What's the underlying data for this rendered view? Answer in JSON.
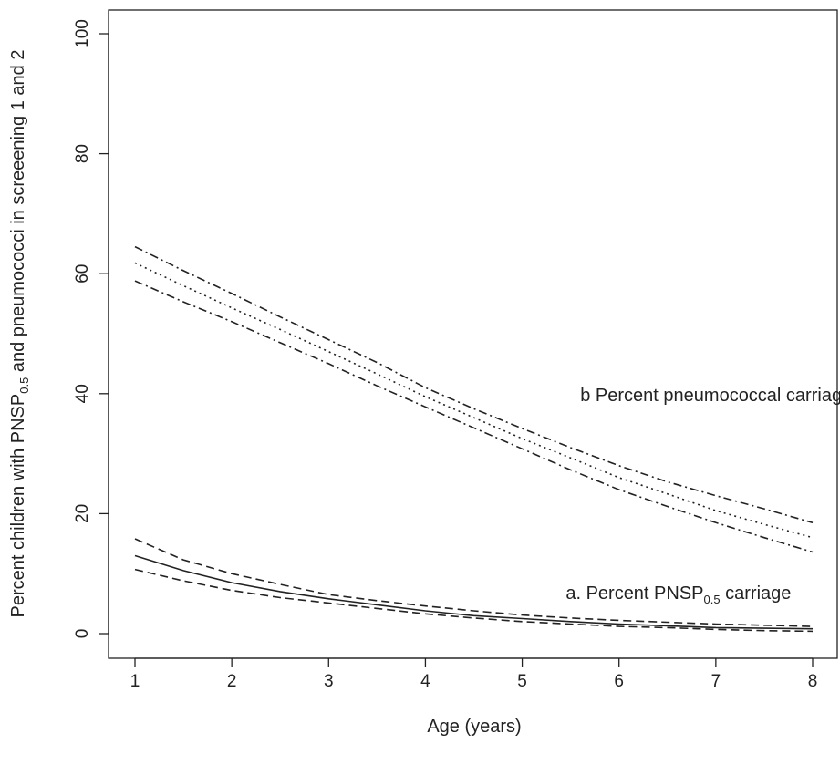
{
  "chart_data": {
    "type": "line",
    "xlabel": "Age (years)",
    "ylabel": {
      "before": "Percent children with PNSP",
      "subscript": "0.5",
      "after": " and pneumococci in screeening 1 and 2"
    },
    "xlim": [
      1,
      8
    ],
    "ylim": [
      0,
      100
    ],
    "x_ticks": [
      1,
      2,
      3,
      4,
      5,
      6,
      7,
      8
    ],
    "y_ticks": [
      0,
      20,
      40,
      60,
      80,
      100
    ],
    "grid": false,
    "legend": "none",
    "x": [
      1,
      1.5,
      2,
      2.5,
      3,
      3.5,
      4,
      4.5,
      5,
      5.5,
      6,
      6.5,
      7,
      7.5,
      8
    ],
    "series": [
      {
        "group": "b",
        "style": "dotted",
        "color": "#222222",
        "values": [
          61.8,
          58,
          54.3,
          50.7,
          47,
          43.3,
          39.5,
          36,
          32.5,
          29.3,
          26,
          23.3,
          20.5,
          18.2,
          16
        ]
      },
      {
        "group": "b",
        "style": "dashdot",
        "color": "#222222",
        "values": [
          64.5,
          60.5,
          56.7,
          52.8,
          49,
          45.2,
          41,
          37.5,
          34.2,
          31,
          28,
          25.3,
          23,
          20.8,
          18.5
        ]
      },
      {
        "group": "b",
        "style": "dashdot",
        "color": "#222222",
        "values": [
          58.8,
          55.3,
          52,
          48.5,
          45,
          41.3,
          37.8,
          34.3,
          30.8,
          27.3,
          24,
          21.2,
          18.5,
          16,
          13.6
        ]
      },
      {
        "group": "a",
        "style": "solid",
        "color": "#222222",
        "values": [
          13,
          10.5,
          8.5,
          7,
          5.8,
          4.8,
          3.8,
          3,
          2.5,
          2,
          1.6,
          1.3,
          1,
          0.9,
          0.8
        ]
      },
      {
        "group": "a",
        "style": "dashed",
        "color": "#222222",
        "values": [
          15.8,
          12.3,
          10,
          8.2,
          6.5,
          5.5,
          4.6,
          3.8,
          3.1,
          2.6,
          2.2,
          1.9,
          1.6,
          1.4,
          1.2
        ]
      },
      {
        "group": "a",
        "style": "dashed",
        "color": "#222222",
        "values": [
          10.7,
          8.8,
          7.2,
          6,
          5.1,
          4.2,
          3.3,
          2.6,
          2,
          1.6,
          1.2,
          1,
          0.7,
          0.5,
          0.4
        ]
      }
    ],
    "annotations": [
      {
        "id": "b",
        "text": "b Percent pneumococcal carriage",
        "x": 5.6,
        "y": 40
      },
      {
        "id": "a",
        "before": "a. Percent PNSP",
        "subscript": "0.5",
        "after": " carriage",
        "x": 5.45,
        "y": 7
      }
    ]
  }
}
